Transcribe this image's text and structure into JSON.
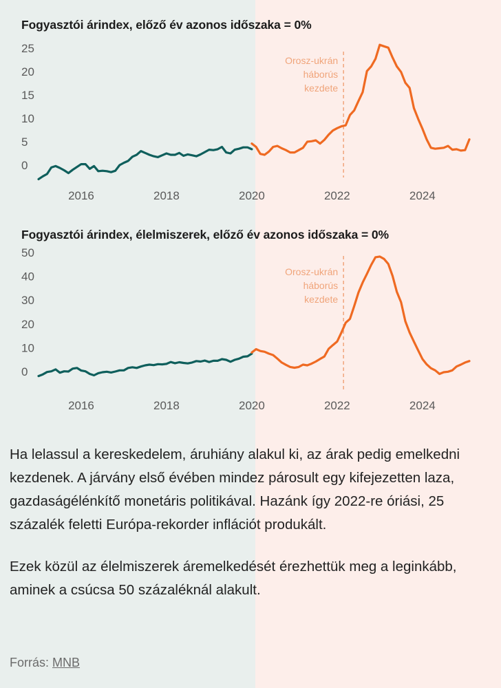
{
  "colors": {
    "pre_series": "#0f5f5c",
    "post_series": "#ef6a22",
    "left_background": "#e9efed",
    "right_background": "#fdeeea",
    "annotation": "#f0a47a"
  },
  "annotation_lines": [
    "Orosz-ukrán",
    "háborús",
    "kezdete"
  ],
  "chart_data": [
    {
      "type": "line",
      "title": "Fogyasztói árindex, előző év azonos időszaka = 0%",
      "xlabel": "",
      "ylabel": "",
      "xlim": [
        2015.0,
        2025.1
      ],
      "ylim": [
        -3,
        25
      ],
      "yticks": [
        0,
        5,
        10,
        15,
        20,
        25
      ],
      "xticks": [
        2016,
        2018,
        2020,
        2022,
        2024
      ],
      "split_at": 2020.0,
      "annotation": {
        "x": 2022.15,
        "lines": [
          "Orosz-ukrán",
          "háborús",
          "kezdete"
        ]
      },
      "series": [
        {
          "name": "2015–2019",
          "color": "#0f5f5c",
          "x": [
            2015.0,
            2015.1,
            2015.2,
            2015.3,
            2015.4,
            2015.5,
            2015.6,
            2015.7,
            2015.8,
            2015.9,
            2016.0,
            2016.1,
            2016.2,
            2016.3,
            2016.4,
            2016.5,
            2016.6,
            2016.7,
            2016.8,
            2016.9,
            2017.0,
            2017.1,
            2017.2,
            2017.3,
            2017.4,
            2017.5,
            2017.6,
            2017.7,
            2017.8,
            2017.9,
            2018.0,
            2018.1,
            2018.2,
            2018.3,
            2018.4,
            2018.5,
            2018.6,
            2018.7,
            2018.8,
            2018.9,
            2019.0,
            2019.1,
            2019.2,
            2019.3,
            2019.4,
            2019.5,
            2019.6,
            2019.7,
            2019.8,
            2019.9,
            2020.0
          ],
          "values": [
            -3.0,
            -2.4,
            -1.9,
            -0.5,
            -0.2,
            -0.6,
            -1.1,
            -1.7,
            -1.0,
            -0.4,
            0.2,
            0.2,
            -0.8,
            -0.2,
            -1.3,
            -1.2,
            -1.3,
            -1.5,
            -1.2,
            0.0,
            0.5,
            0.9,
            1.8,
            2.2,
            3.0,
            2.6,
            2.2,
            1.9,
            1.7,
            2.1,
            2.5,
            2.2,
            2.2,
            2.6,
            2.0,
            2.3,
            2.1,
            1.9,
            2.3,
            2.8,
            3.3,
            3.2,
            3.4,
            3.9,
            2.7,
            2.5,
            3.3,
            3.5,
            3.8,
            3.8,
            3.4
          ]
        },
        {
          "name": "2020–2025",
          "color": "#ef6a22",
          "x": [
            2020.0,
            2020.1,
            2020.2,
            2020.3,
            2020.4,
            2020.5,
            2020.6,
            2020.7,
            2020.8,
            2020.9,
            2021.0,
            2021.1,
            2021.2,
            2021.3,
            2021.4,
            2021.5,
            2021.6,
            2021.7,
            2021.8,
            2021.9,
            2022.0,
            2022.1,
            2022.2,
            2022.3,
            2022.4,
            2022.5,
            2022.6,
            2022.7,
            2022.8,
            2022.9,
            2023.0,
            2023.1,
            2023.2,
            2023.3,
            2023.4,
            2023.5,
            2023.6,
            2023.7,
            2023.8,
            2023.9,
            2024.0,
            2024.1,
            2024.2,
            2024.3,
            2024.4,
            2024.5,
            2024.6,
            2024.7,
            2024.8,
            2024.9,
            2025.0,
            2025.1
          ],
          "values": [
            4.6,
            3.9,
            2.4,
            2.2,
            2.9,
            3.9,
            4.1,
            3.6,
            3.2,
            2.7,
            2.7,
            3.2,
            3.7,
            5.0,
            5.1,
            5.3,
            4.6,
            5.4,
            6.5,
            7.4,
            7.9,
            8.3,
            8.5,
            10.7,
            11.7,
            13.7,
            15.6,
            20.1,
            21.1,
            22.7,
            25.7,
            25.4,
            25.1,
            23.0,
            21.1,
            19.9,
            17.6,
            16.5,
            12.2,
            9.9,
            7.8,
            5.5,
            3.7,
            3.5,
            3.6,
            3.7,
            4.1,
            3.3,
            3.4,
            3.1,
            3.2,
            5.5
          ]
        }
      ]
    },
    {
      "type": "line",
      "title": "Fogyasztói árindex, élelmiszerek, előző év azonos időszaka = 0%",
      "xlabel": "",
      "ylabel": "",
      "xlim": [
        2015.0,
        2025.1
      ],
      "ylim": [
        -3,
        50
      ],
      "yticks": [
        0,
        10,
        20,
        30,
        40,
        50
      ],
      "xticks": [
        2016,
        2018,
        2020,
        2022,
        2024
      ],
      "split_at": 2020.0,
      "annotation": {
        "x": 2022.15,
        "lines": [
          "Orosz-ukrán",
          "háborús",
          "kezdete"
        ]
      },
      "series": [
        {
          "name": "2015–2019",
          "color": "#0f5f5c",
          "x": [
            2015.0,
            2015.1,
            2015.2,
            2015.3,
            2015.4,
            2015.5,
            2015.6,
            2015.7,
            2015.8,
            2015.9,
            2016.0,
            2016.1,
            2016.2,
            2016.3,
            2016.4,
            2016.5,
            2016.6,
            2016.7,
            2016.8,
            2016.9,
            2017.0,
            2017.1,
            2017.2,
            2017.3,
            2017.4,
            2017.5,
            2017.6,
            2017.7,
            2017.8,
            2017.9,
            2018.0,
            2018.1,
            2018.2,
            2018.3,
            2018.4,
            2018.5,
            2018.6,
            2018.7,
            2018.8,
            2018.9,
            2019.0,
            2019.1,
            2019.2,
            2019.3,
            2019.4,
            2019.5,
            2019.6,
            2019.7,
            2019.8,
            2019.9,
            2020.0
          ],
          "values": [
            -1.9,
            -1.2,
            -0.2,
            0.1,
            0.9,
            -0.5,
            0.1,
            0.0,
            1.2,
            1.5,
            0.4,
            0.1,
            -1.0,
            -1.6,
            -0.7,
            -0.3,
            -0.1,
            -0.4,
            0.0,
            0.5,
            0.5,
            1.5,
            1.8,
            1.5,
            2.1,
            2.6,
            2.9,
            2.7,
            3.1,
            3.0,
            3.2,
            4.0,
            3.5,
            3.9,
            3.6,
            3.4,
            3.8,
            4.4,
            4.2,
            4.6,
            4.0,
            4.5,
            4.5,
            5.2,
            4.9,
            4.1,
            4.9,
            5.4,
            6.2,
            6.4,
            7.5
          ]
        },
        {
          "name": "2020–2025",
          "color": "#ef6a22",
          "x": [
            2020.0,
            2020.1,
            2020.2,
            2020.3,
            2020.4,
            2020.5,
            2020.6,
            2020.7,
            2020.8,
            2020.9,
            2021.0,
            2021.1,
            2021.2,
            2021.3,
            2021.4,
            2021.5,
            2021.6,
            2021.7,
            2021.8,
            2021.9,
            2022.0,
            2022.1,
            2022.2,
            2022.3,
            2022.4,
            2022.5,
            2022.6,
            2022.7,
            2022.8,
            2022.9,
            2023.0,
            2023.1,
            2023.2,
            2023.3,
            2023.4,
            2023.5,
            2023.6,
            2023.7,
            2023.8,
            2023.9,
            2024.0,
            2024.1,
            2024.2,
            2024.3,
            2024.4,
            2024.5,
            2024.6,
            2024.7,
            2024.8,
            2024.9,
            2025.0,
            2025.1
          ],
          "values": [
            8.0,
            9.4,
            8.6,
            8.3,
            7.5,
            6.9,
            5.4,
            3.8,
            2.8,
            1.9,
            1.6,
            1.9,
            2.9,
            2.6,
            3.3,
            4.2,
            5.3,
            6.3,
            9.5,
            11.1,
            12.6,
            16.4,
            20.5,
            22.1,
            27.5,
            33.2,
            37.4,
            41.0,
            44.8,
            48.0,
            48.3,
            47.3,
            45.2,
            40.2,
            33.5,
            29.1,
            21.1,
            16.4,
            12.6,
            8.9,
            5.3,
            3.0,
            1.4,
            0.5,
            -1.0,
            -0.3,
            -0.1,
            0.5,
            2.1,
            2.9,
            3.8,
            4.4
          ]
        }
      ]
    }
  ],
  "paragraphs": [
    "Ha lelassul a kereskedelem, áruhiány alakul ki, az árak pedig emelkedni kezdenek. A járvány első évében mindez párosult egy kifejezetten laza, gazdaságélénkítő monetáris politikával. Hazánk így 2022-re óriási, 25 százalék feletti Európa-rekorder inflációt produkált.",
    "Ezek közül az élelmiszerek áremelkedését érezhettük meg a leginkább, aminek a csúcsa 50 százaléknál alakult."
  ],
  "source": {
    "prefix": "Forrás:",
    "link": "MNB"
  }
}
